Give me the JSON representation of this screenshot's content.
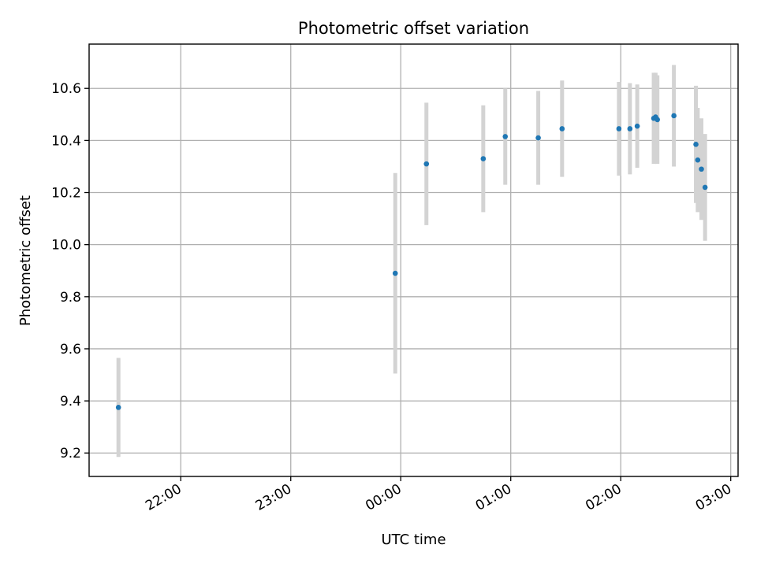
{
  "colors": {
    "point": "#1f77b4",
    "errorbar": "#d3d3d3",
    "grid": "#b0b0b0"
  },
  "chart_data": {
    "type": "scatter",
    "title": "Photometric offset variation",
    "xlabel": "UTC time",
    "ylabel": "Photometric offset",
    "grid": true,
    "xlim": [
      "21:10",
      "03:04"
    ],
    "ylim": [
      9.11,
      10.77
    ],
    "x_ticks": [
      "22:00",
      "23:00",
      "00:00",
      "01:00",
      "02:00",
      "03:00"
    ],
    "y_ticks": [
      "9.2",
      "9.4",
      "9.6",
      "9.8",
      "10.0",
      "10.2",
      "10.4",
      "10.6"
    ],
    "points": [
      {
        "x": "21:26",
        "y": 9.375,
        "err": 0.19
      },
      {
        "x": "23:57",
        "y": 9.89,
        "err": 0.385
      },
      {
        "x": "00:14",
        "y": 10.31,
        "err": 0.235
      },
      {
        "x": "00:45",
        "y": 10.33,
        "err": 0.205
      },
      {
        "x": "00:57",
        "y": 10.415,
        "err": 0.185
      },
      {
        "x": "01:15",
        "y": 10.41,
        "err": 0.18
      },
      {
        "x": "01:28",
        "y": 10.445,
        "err": 0.185
      },
      {
        "x": "01:59",
        "y": 10.445,
        "err": 0.18
      },
      {
        "x": "02:05",
        "y": 10.445,
        "err": 0.175
      },
      {
        "x": "02:09",
        "y": 10.455,
        "err": 0.16
      },
      {
        "x": "02:18",
        "y": 10.485,
        "err": 0.175
      },
      {
        "x": "02:19",
        "y": 10.49,
        "err": 0.17
      },
      {
        "x": "02:20",
        "y": 10.48,
        "err": 0.17
      },
      {
        "x": "02:29",
        "y": 10.495,
        "err": 0.195
      },
      {
        "x": "02:41",
        "y": 10.385,
        "err": 0.225
      },
      {
        "x": "02:42",
        "y": 10.325,
        "err": 0.2
      },
      {
        "x": "02:44",
        "y": 10.29,
        "err": 0.195
      },
      {
        "x": "02:46",
        "y": 10.22,
        "err": 0.205
      }
    ]
  }
}
